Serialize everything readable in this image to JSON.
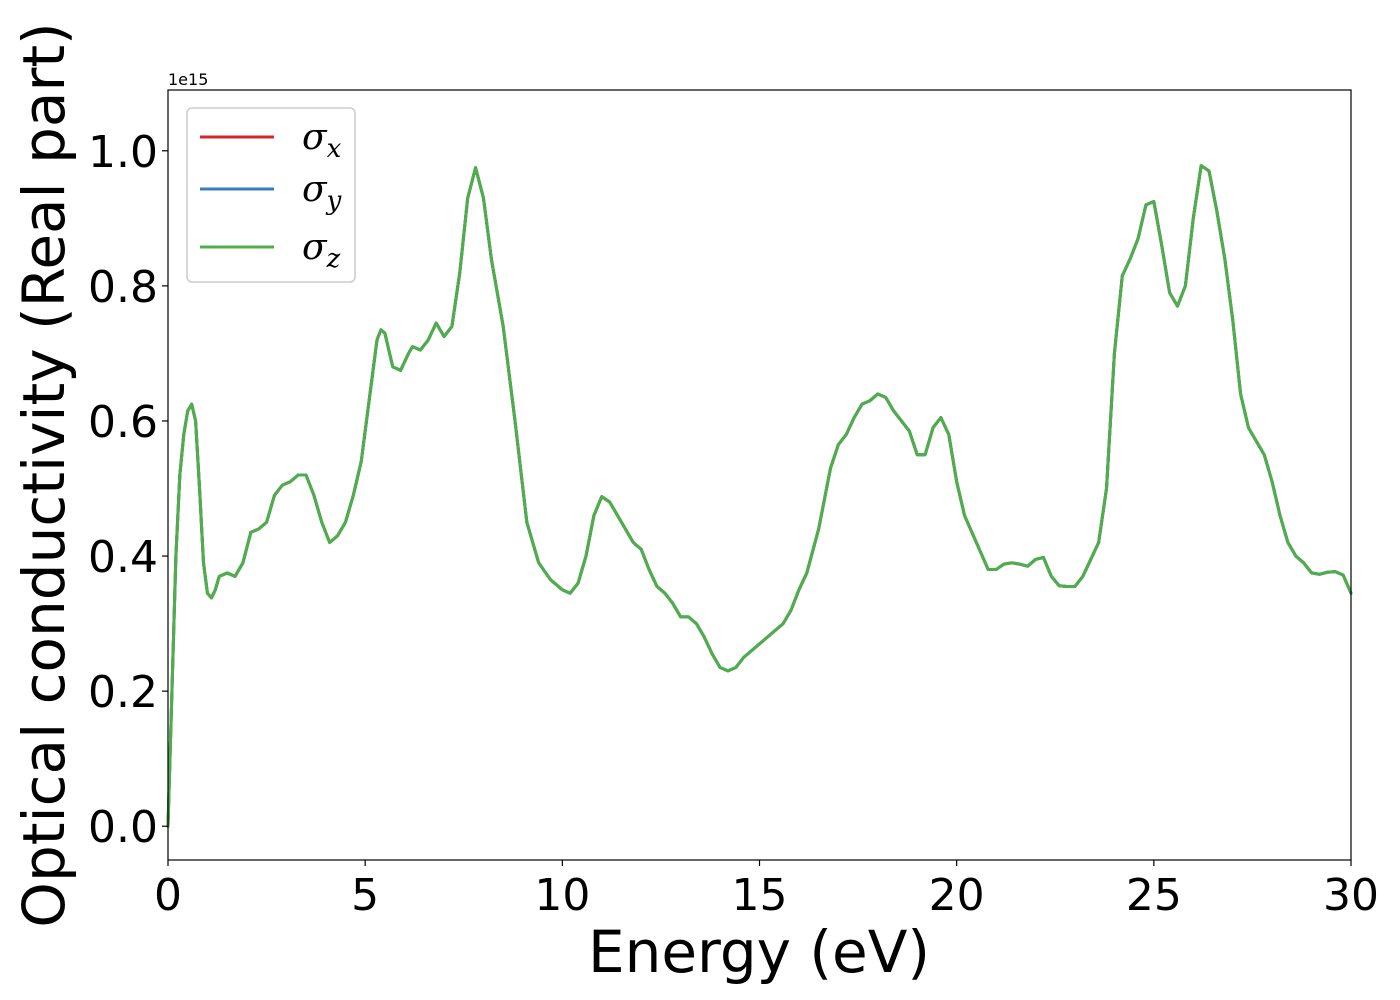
{
  "chart_data": {
    "type": "line",
    "xlabel": "Energy (eV)",
    "ylabel": "Optical conductivity (Real part)",
    "y_offset_label": "1e15",
    "xlim": [
      0,
      30
    ],
    "ylim": [
      -0.05,
      1.09
    ],
    "xticks": [
      0,
      5,
      10,
      15,
      20,
      25,
      30
    ],
    "xtick_labels": [
      "0",
      "5",
      "10",
      "15",
      "20",
      "25",
      "30"
    ],
    "yticks": [
      0.0,
      0.2,
      0.4,
      0.6,
      0.8,
      1.0
    ],
    "ytick_labels": [
      "0.0",
      "0.2",
      "0.4",
      "0.6",
      "0.8",
      "1.0"
    ],
    "grid": false,
    "legend_position": "top-left",
    "x": [
      0,
      0.1,
      0.2,
      0.3,
      0.4,
      0.5,
      0.6,
      0.7,
      0.8,
      0.9,
      1.0,
      1.1,
      1.2,
      1.3,
      1.5,
      1.7,
      1.9,
      2.1,
      2.3,
      2.5,
      2.7,
      2.9,
      3.1,
      3.3,
      3.5,
      3.7,
      3.9,
      4.1,
      4.3,
      4.5,
      4.7,
      4.9,
      5.1,
      5.3,
      5.4,
      5.5,
      5.7,
      5.9,
      6.1,
      6.2,
      6.4,
      6.6,
      6.8,
      7.0,
      7.2,
      7.4,
      7.6,
      7.8,
      8.0,
      8.2,
      8.5,
      8.8,
      9.1,
      9.4,
      9.7,
      10.0,
      10.2,
      10.4,
      10.6,
      10.8,
      11.0,
      11.2,
      11.5,
      11.8,
      12.0,
      12.2,
      12.4,
      12.6,
      12.8,
      13.0,
      13.2,
      13.4,
      13.6,
      13.8,
      14.0,
      14.2,
      14.4,
      14.6,
      14.8,
      15.0,
      15.2,
      15.4,
      15.6,
      15.8,
      16.0,
      16.2,
      16.5,
      16.8,
      17.0,
      17.2,
      17.4,
      17.6,
      17.8,
      18.0,
      18.2,
      18.4,
      18.6,
      18.8,
      19.0,
      19.2,
      19.4,
      19.6,
      19.8,
      20.0,
      20.2,
      20.5,
      20.8,
      21.0,
      21.2,
      21.4,
      21.6,
      21.8,
      22.0,
      22.2,
      22.4,
      22.6,
      22.8,
      23.0,
      23.2,
      23.4,
      23.6,
      23.8,
      24.0,
      24.2,
      24.4,
      24.6,
      24.8,
      25.0,
      25.2,
      25.4,
      25.6,
      25.8,
      26.0,
      26.2,
      26.4,
      26.6,
      26.8,
      27.0,
      27.2,
      27.4,
      27.6,
      27.8,
      28.0,
      28.2,
      28.4,
      28.6,
      28.8,
      29.0,
      29.2,
      29.4,
      29.6,
      29.8,
      30.0
    ],
    "series": [
      {
        "name": "σ_x",
        "color": "#d62728",
        "y": [
          0.0,
          0.2,
          0.4,
          0.52,
          0.58,
          0.615,
          0.625,
          0.6,
          0.5,
          0.39,
          0.345,
          0.338,
          0.35,
          0.37,
          0.375,
          0.37,
          0.39,
          0.435,
          0.44,
          0.45,
          0.49,
          0.505,
          0.51,
          0.52,
          0.52,
          0.49,
          0.45,
          0.42,
          0.43,
          0.45,
          0.49,
          0.54,
          0.63,
          0.72,
          0.735,
          0.73,
          0.68,
          0.675,
          0.7,
          0.71,
          0.705,
          0.72,
          0.745,
          0.725,
          0.74,
          0.82,
          0.93,
          0.975,
          0.93,
          0.84,
          0.74,
          0.6,
          0.45,
          0.39,
          0.365,
          0.35,
          0.345,
          0.36,
          0.4,
          0.46,
          0.488,
          0.48,
          0.45,
          0.42,
          0.41,
          0.38,
          0.355,
          0.345,
          0.33,
          0.31,
          0.31,
          0.3,
          0.28,
          0.255,
          0.235,
          0.23,
          0.235,
          0.25,
          0.26,
          0.27,
          0.28,
          0.29,
          0.3,
          0.32,
          0.35,
          0.375,
          0.44,
          0.53,
          0.565,
          0.58,
          0.605,
          0.625,
          0.63,
          0.64,
          0.635,
          0.615,
          0.6,
          0.585,
          0.55,
          0.55,
          0.59,
          0.605,
          0.58,
          0.51,
          0.46,
          0.42,
          0.38,
          0.38,
          0.388,
          0.39,
          0.388,
          0.385,
          0.395,
          0.398,
          0.37,
          0.356,
          0.355,
          0.355,
          0.37,
          0.395,
          0.42,
          0.5,
          0.7,
          0.815,
          0.84,
          0.87,
          0.92,
          0.925,
          0.86,
          0.79,
          0.77,
          0.8,
          0.9,
          0.978,
          0.97,
          0.91,
          0.84,
          0.75,
          0.64,
          0.59,
          0.57,
          0.55,
          0.51,
          0.46,
          0.42,
          0.4,
          0.39,
          0.375,
          0.373,
          0.376,
          0.377,
          0.372,
          0.345
        ]
      },
      {
        "name": "σ_y",
        "color": "#377eb8",
        "y": [
          0.0,
          0.2,
          0.4,
          0.52,
          0.58,
          0.615,
          0.625,
          0.6,
          0.5,
          0.39,
          0.345,
          0.338,
          0.35,
          0.37,
          0.375,
          0.37,
          0.39,
          0.435,
          0.44,
          0.45,
          0.49,
          0.505,
          0.51,
          0.52,
          0.52,
          0.49,
          0.45,
          0.42,
          0.43,
          0.45,
          0.49,
          0.54,
          0.63,
          0.72,
          0.735,
          0.73,
          0.68,
          0.675,
          0.7,
          0.71,
          0.705,
          0.72,
          0.745,
          0.725,
          0.74,
          0.82,
          0.93,
          0.975,
          0.93,
          0.84,
          0.74,
          0.6,
          0.45,
          0.39,
          0.365,
          0.35,
          0.345,
          0.36,
          0.4,
          0.46,
          0.488,
          0.48,
          0.45,
          0.42,
          0.41,
          0.38,
          0.355,
          0.345,
          0.33,
          0.31,
          0.31,
          0.3,
          0.28,
          0.255,
          0.235,
          0.23,
          0.235,
          0.25,
          0.26,
          0.27,
          0.28,
          0.29,
          0.3,
          0.32,
          0.35,
          0.375,
          0.44,
          0.53,
          0.565,
          0.58,
          0.605,
          0.625,
          0.63,
          0.64,
          0.635,
          0.615,
          0.6,
          0.585,
          0.55,
          0.55,
          0.59,
          0.605,
          0.58,
          0.51,
          0.46,
          0.42,
          0.38,
          0.38,
          0.388,
          0.39,
          0.388,
          0.385,
          0.395,
          0.398,
          0.37,
          0.356,
          0.355,
          0.355,
          0.37,
          0.395,
          0.42,
          0.5,
          0.7,
          0.815,
          0.84,
          0.87,
          0.92,
          0.925,
          0.86,
          0.79,
          0.77,
          0.8,
          0.9,
          0.978,
          0.97,
          0.91,
          0.84,
          0.75,
          0.64,
          0.59,
          0.57,
          0.55,
          0.51,
          0.46,
          0.42,
          0.4,
          0.39,
          0.375,
          0.373,
          0.376,
          0.377,
          0.372,
          0.345
        ]
      },
      {
        "name": "σ_z",
        "color": "#4daf4a",
        "y": [
          0.0,
          0.2,
          0.4,
          0.52,
          0.58,
          0.615,
          0.625,
          0.6,
          0.5,
          0.39,
          0.345,
          0.338,
          0.35,
          0.37,
          0.375,
          0.37,
          0.39,
          0.435,
          0.44,
          0.45,
          0.49,
          0.505,
          0.51,
          0.52,
          0.52,
          0.49,
          0.45,
          0.42,
          0.43,
          0.45,
          0.49,
          0.54,
          0.63,
          0.72,
          0.735,
          0.73,
          0.68,
          0.675,
          0.7,
          0.71,
          0.705,
          0.72,
          0.745,
          0.725,
          0.74,
          0.82,
          0.93,
          0.975,
          0.93,
          0.84,
          0.74,
          0.6,
          0.45,
          0.39,
          0.365,
          0.35,
          0.345,
          0.36,
          0.4,
          0.46,
          0.488,
          0.48,
          0.45,
          0.42,
          0.41,
          0.38,
          0.355,
          0.345,
          0.33,
          0.31,
          0.31,
          0.3,
          0.28,
          0.255,
          0.235,
          0.23,
          0.235,
          0.25,
          0.26,
          0.27,
          0.28,
          0.29,
          0.3,
          0.32,
          0.35,
          0.375,
          0.44,
          0.53,
          0.565,
          0.58,
          0.605,
          0.625,
          0.63,
          0.64,
          0.635,
          0.615,
          0.6,
          0.585,
          0.55,
          0.55,
          0.59,
          0.605,
          0.58,
          0.51,
          0.46,
          0.42,
          0.38,
          0.38,
          0.388,
          0.39,
          0.388,
          0.385,
          0.395,
          0.398,
          0.37,
          0.356,
          0.355,
          0.355,
          0.37,
          0.395,
          0.42,
          0.5,
          0.7,
          0.815,
          0.84,
          0.87,
          0.92,
          0.925,
          0.86,
          0.79,
          0.77,
          0.8,
          0.9,
          0.978,
          0.97,
          0.91,
          0.84,
          0.75,
          0.64,
          0.59,
          0.57,
          0.55,
          0.51,
          0.46,
          0.42,
          0.4,
          0.39,
          0.375,
          0.373,
          0.376,
          0.377,
          0.372,
          0.345
        ]
      }
    ],
    "legend": [
      {
        "symbol": "σ",
        "sub": "x",
        "color": "#d62728"
      },
      {
        "symbol": "σ",
        "sub": "y",
        "color": "#377eb8"
      },
      {
        "symbol": "σ",
        "sub": "z",
        "color": "#4daf4a"
      }
    ]
  }
}
